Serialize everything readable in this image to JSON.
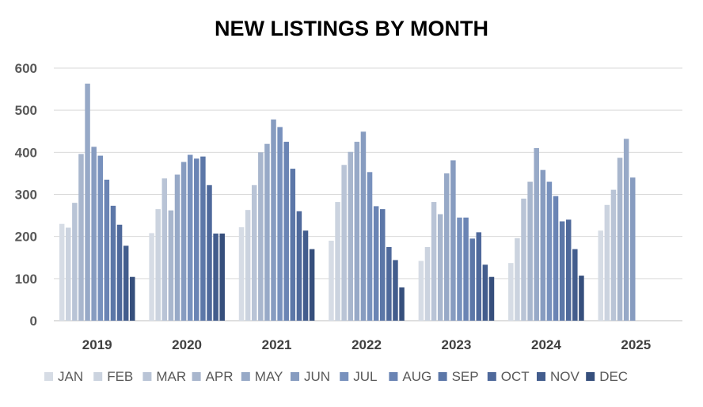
{
  "chart_data": {
    "type": "bar",
    "title": "NEW LISTINGS BY MONTH",
    "xlabel": "",
    "ylabel": "",
    "ylim": [
      0,
      600
    ],
    "yticks": [
      "0",
      "100",
      "200",
      "300",
      "400",
      "500",
      "600"
    ],
    "grid": true,
    "legend_position": "bottom",
    "categories": [
      "2019",
      "2020",
      "2021",
      "2022",
      "2023",
      "2024",
      "2025"
    ],
    "series": [
      {
        "name": "JAN",
        "color": "#d6dce5",
        "values": [
          230,
          208,
          222,
          190,
          142,
          137,
          214
        ]
      },
      {
        "name": "FEB",
        "color": "#cbd3df",
        "values": [
          221,
          265,
          263,
          282,
          175,
          196,
          275
        ]
      },
      {
        "name": "MAR",
        "color": "#b9c4d6",
        "values": [
          280,
          338,
          322,
          370,
          282,
          290,
          311
        ]
      },
      {
        "name": "APR",
        "color": "#a8b6cd",
        "values": [
          396,
          262,
          400,
          401,
          253,
          330,
          387
        ]
      },
      {
        "name": "MAY",
        "color": "#97a9c7",
        "values": [
          563,
          347,
          420,
          425,
          350,
          410,
          432
        ]
      },
      {
        "name": "JUN",
        "color": "#879cc0",
        "values": [
          413,
          377,
          478,
          449,
          381,
          358,
          340
        ]
      },
      {
        "name": "JUL",
        "color": "#7891bd",
        "values": [
          392,
          394,
          460,
          353,
          245,
          330,
          null
        ]
      },
      {
        "name": "AUG",
        "color": "#6a84b4",
        "values": [
          335,
          385,
          425,
          272,
          245,
          296,
          null
        ]
      },
      {
        "name": "SEP",
        "color": "#5c77a8",
        "values": [
          273,
          390,
          361,
          265,
          195,
          236,
          null
        ]
      },
      {
        "name": "OCT",
        "color": "#4f699b",
        "values": [
          228,
          322,
          260,
          175,
          210,
          240,
          null
        ]
      },
      {
        "name": "NOV",
        "color": "#435d8d",
        "values": [
          178,
          207,
          214,
          144,
          133,
          170,
          null
        ]
      },
      {
        "name": "DEC",
        "color": "#364f7c",
        "values": [
          104,
          207,
          170,
          79,
          104,
          107,
          null
        ]
      }
    ]
  }
}
